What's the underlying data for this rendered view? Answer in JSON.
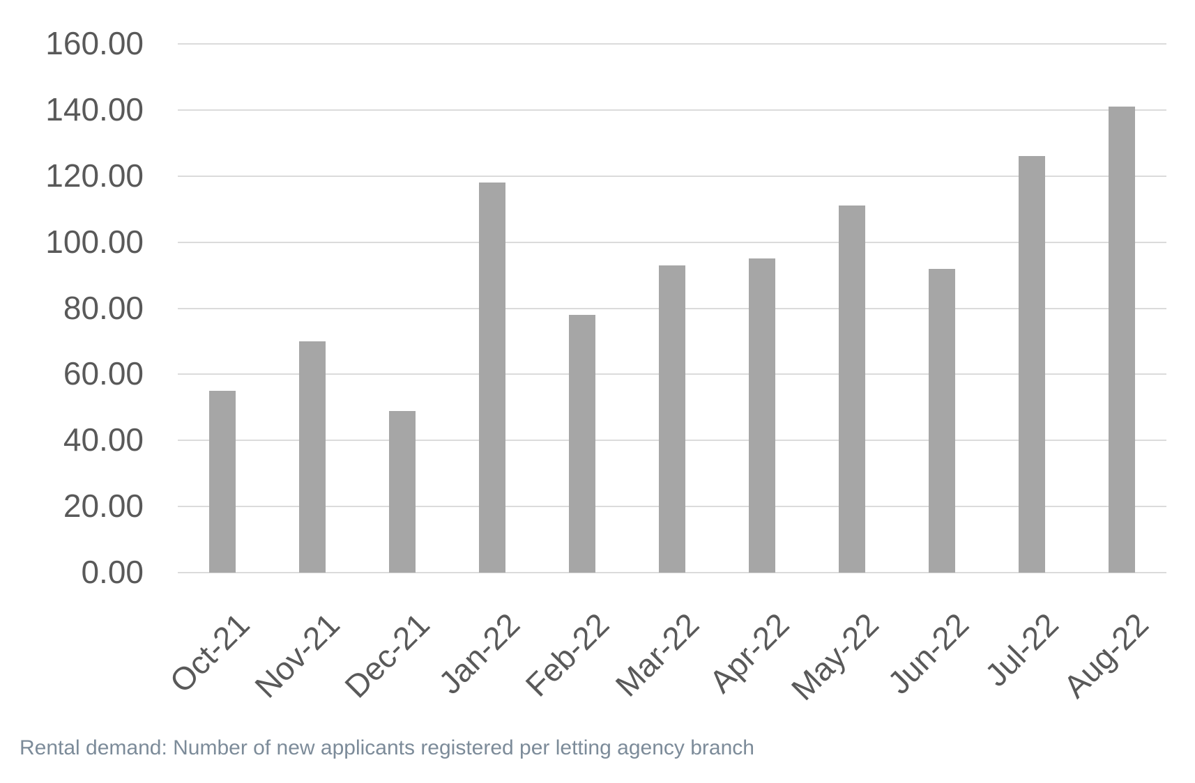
{
  "chart_data": {
    "type": "bar",
    "categories": [
      "Oct-21",
      "Nov-21",
      "Dec-21",
      "Jan-22",
      "Feb-22",
      "Mar-22",
      "Apr-22",
      "May-22",
      "Jun-22",
      "Jul-22",
      "Aug-22"
    ],
    "values": [
      55,
      70,
      49,
      118,
      78,
      93,
      95,
      111,
      92,
      126,
      141
    ],
    "yticks": [
      "0.00",
      "20.00",
      "40.00",
      "60.00",
      "80.00",
      "100.00",
      "120.00",
      "140.00",
      "160.00"
    ],
    "ylim": [
      0,
      160
    ],
    "ytick_step": 20,
    "title": "",
    "xlabel": "",
    "ylabel": "",
    "grid": true,
    "legend": false,
    "bar_color": "#a6a6a6",
    "gridline_color": "#dbdbdb",
    "axis_text_color": "#595959"
  },
  "caption": {
    "text": "Rental demand: Number of new applicants registered per letting agency branch",
    "color": "#7c8b99"
  }
}
